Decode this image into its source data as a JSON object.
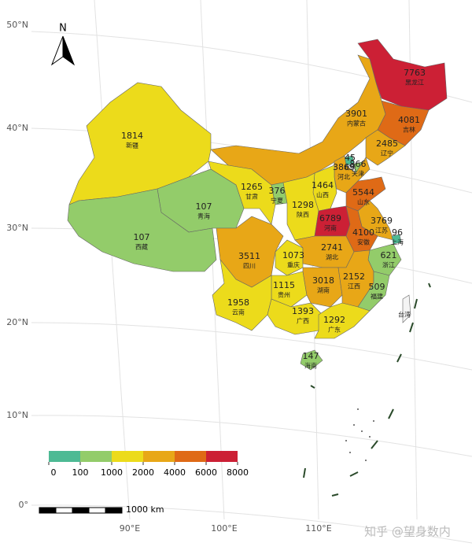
{
  "map": {
    "north_label": "N",
    "lat_labels": [
      "50°N",
      "40°N",
      "30°N",
      "20°N",
      "10°N",
      "0°"
    ],
    "lon_labels": [
      "90°E",
      "100°E",
      "110°E"
    ],
    "scale_label": "1000 km",
    "watermark": "知乎 @望身数内",
    "legend": {
      "breaks": [
        0,
        100,
        1000,
        2000,
        4000,
        6000,
        8000
      ],
      "colors": [
        "#4dba94",
        "#93cc6a",
        "#ecdb1b",
        "#e8a717",
        "#df6a16",
        "#cc2035"
      ]
    },
    "regions": [
      {
        "name": "黑龙江",
        "value": 7763
      },
      {
        "name": "吉林",
        "value": 4081
      },
      {
        "name": "内蒙古",
        "value": 3901
      },
      {
        "name": "辽宁",
        "value": 2485
      },
      {
        "name": "新疆",
        "value": 1814
      },
      {
        "name": "北京",
        "value": 45
      },
      {
        "name": "天津",
        "value": 866
      },
      {
        "name": "河北",
        "value": 3869
      },
      {
        "name": "甘肃",
        "value": 1265
      },
      {
        "name": "宁夏",
        "value": 376
      },
      {
        "name": "山西",
        "value": 1464
      },
      {
        "name": "山东",
        "value": 5544
      },
      {
        "name": "陕西",
        "value": 1298
      },
      {
        "name": "青海",
        "value": 107
      },
      {
        "name": "西藏",
        "value": 107
      },
      {
        "name": "河南",
        "value": 6789
      },
      {
        "name": "江苏",
        "value": 3769
      },
      {
        "name": "安徽",
        "value": 4100
      },
      {
        "name": "上海",
        "value": 96
      },
      {
        "name": "四川",
        "value": 3511
      },
      {
        "name": "重庆",
        "value": 1073
      },
      {
        "name": "湖北",
        "value": 2741
      },
      {
        "name": "浙江",
        "value": 621
      },
      {
        "name": "贵州",
        "value": 1115
      },
      {
        "name": "湖南",
        "value": 3018
      },
      {
        "name": "江西",
        "value": 2152
      },
      {
        "name": "福建",
        "value": 509
      },
      {
        "name": "云南",
        "value": 1958
      },
      {
        "name": "广西",
        "value": 1393
      },
      {
        "name": "广东",
        "value": 1292
      },
      {
        "name": "海南",
        "value": 147
      },
      {
        "name": "台湾"
      }
    ]
  }
}
